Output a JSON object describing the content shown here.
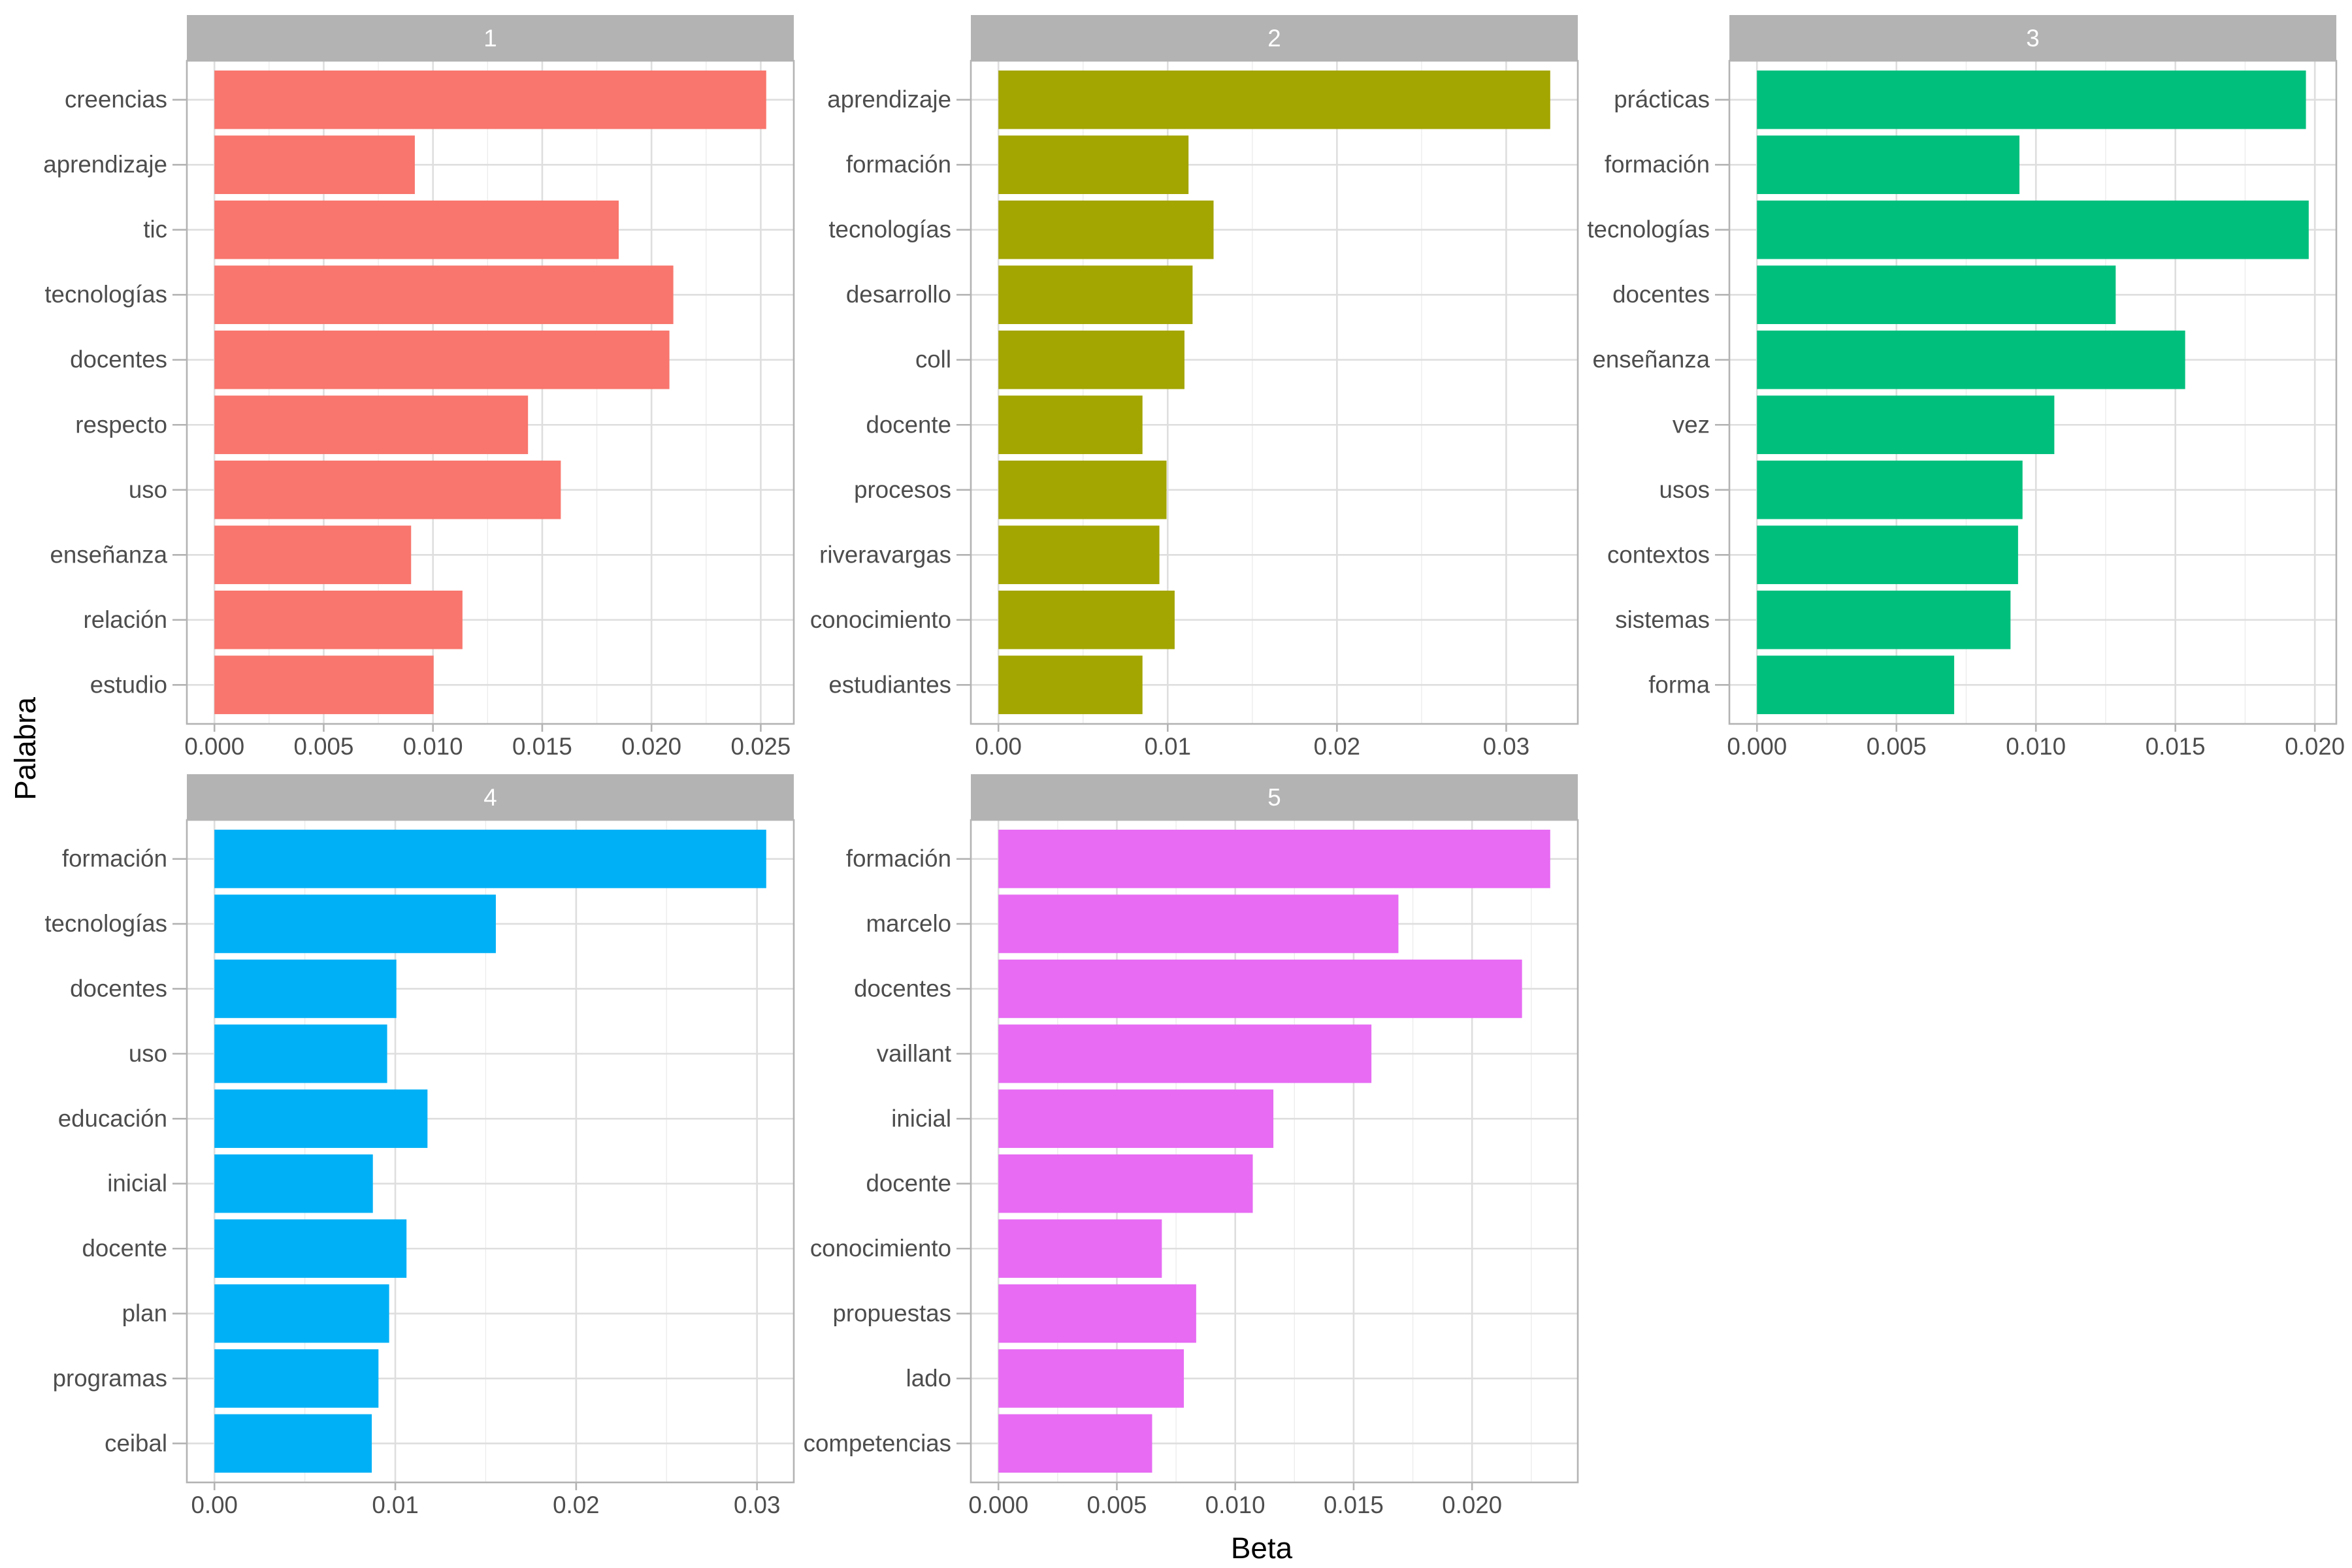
{
  "chart_data": {
    "type": "bar",
    "orientation": "horizontal",
    "layout": "facet_wrap",
    "xlabel": "Beta",
    "ylabel": "Palabra",
    "grid": true,
    "legend": "none",
    "panels": [
      {
        "title": "1",
        "color": "#F8766D",
        "categories": [
          "creencias",
          "aprendizaje",
          "tic",
          "tecnologías",
          "docentes",
          "respecto",
          "uso",
          "enseñanza",
          "relación",
          "estudio"
        ],
        "values": [
          0.02525,
          0.00917,
          0.0185,
          0.021,
          0.02082,
          0.01435,
          0.01585,
          0.009,
          0.01135,
          0.01003
        ],
        "ticks": [
          0,
          0.005,
          0.01,
          0.015,
          0.02,
          0.025
        ],
        "tick_labels": [
          "0.000",
          "0.005",
          "0.010",
          "0.015",
          "0.020",
          "0.025"
        ],
        "minor_ticks": [
          0.0025,
          0.0075,
          0.0125,
          0.0175,
          0.0225
        ]
      },
      {
        "title": "2",
        "color": "#A3A500",
        "categories": [
          "aprendizaje",
          "formación",
          "tecnologías",
          "desarrollo",
          "coll",
          "docente",
          "procesos",
          "riveravargas",
          "conocimiento",
          "estudiantes"
        ],
        "values": [
          0.0326,
          0.01123,
          0.01271,
          0.01147,
          0.01099,
          0.00851,
          0.00993,
          0.00951,
          0.01041,
          0.00851
        ],
        "ticks": [
          0,
          0.01,
          0.02,
          0.03
        ],
        "tick_labels": [
          "0.00",
          "0.01",
          "0.02",
          "0.03"
        ],
        "minor_ticks": [
          0.005,
          0.015,
          0.025
        ]
      },
      {
        "title": "3",
        "color": "#00BF7D",
        "categories": [
          "prácticas",
          "formación",
          "tecnologías",
          "docentes",
          "enseñanza",
          "vez",
          "usos",
          "contextos",
          "sistemas",
          "forma"
        ],
        "values": [
          0.01968,
          0.00941,
          0.01978,
          0.01286,
          0.01535,
          0.01066,
          0.00952,
          0.00936,
          0.00909,
          0.00707
        ],
        "ticks": [
          0,
          0.005,
          0.01,
          0.015,
          0.02
        ],
        "tick_labels": [
          "0.000",
          "0.005",
          "0.010",
          "0.015",
          "0.020"
        ],
        "minor_ticks": [
          0.0025,
          0.0075,
          0.0125,
          0.0175
        ]
      },
      {
        "title": "4",
        "color": "#00B0F6",
        "categories": [
          "formación",
          "tecnologías",
          "docentes",
          "uso",
          "educación",
          "inicial",
          "docente",
          "plan",
          "programas",
          "ceibal"
        ],
        "values": [
          0.03051,
          0.01556,
          0.01006,
          0.00955,
          0.01178,
          0.00876,
          0.01062,
          0.00966,
          0.00907,
          0.0087
        ],
        "ticks": [
          0,
          0.01,
          0.02,
          0.03
        ],
        "tick_labels": [
          "0.00",
          "0.01",
          "0.02",
          "0.03"
        ],
        "minor_ticks": [
          0.005,
          0.015,
          0.025
        ]
      },
      {
        "title": "5",
        "color": "#E76BF3",
        "categories": [
          "formación",
          "marcelo",
          "docentes",
          "vaillant",
          "inicial",
          "docente",
          "conocimiento",
          "propuestas",
          "lado",
          "competencias"
        ],
        "values": [
          0.0233,
          0.01689,
          0.02211,
          0.01575,
          0.01161,
          0.01074,
          0.0069,
          0.00835,
          0.00783,
          0.00649
        ],
        "ticks": [
          0,
          0.005,
          0.01,
          0.015,
          0.02
        ],
        "tick_labels": [
          "0.000",
          "0.005",
          "0.010",
          "0.015",
          "0.020"
        ],
        "minor_ticks": [
          0.0025,
          0.0075,
          0.0125,
          0.0175,
          0.0225
        ]
      }
    ]
  }
}
